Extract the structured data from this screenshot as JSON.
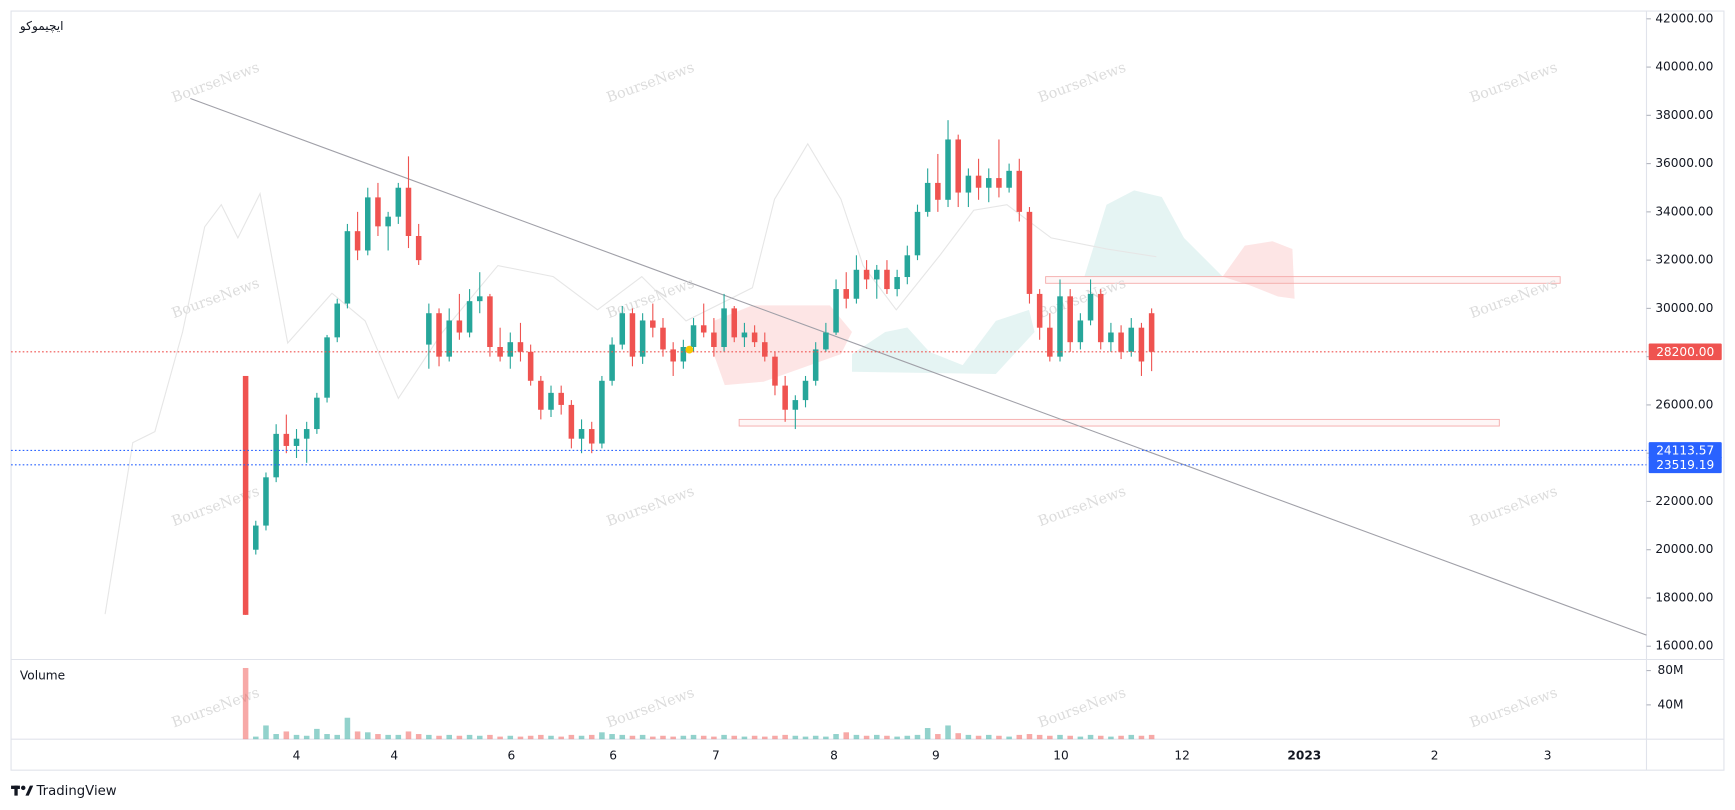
{
  "chart_data": {
    "type": "candlestick",
    "title": "ایچیموکو",
    "watermark": "BourseNews",
    "up_color": "#26a69a",
    "down_color": "#ef5350",
    "xlim": [
      -23.04,
      137.61
    ],
    "xticks": [
      {
        "value": 5,
        "label": "4"
      },
      {
        "value": 14.6,
        "label": "4"
      },
      {
        "value": 26.1,
        "label": "6"
      },
      {
        "value": 36.1,
        "label": "6"
      },
      {
        "value": 46.2,
        "label": "7"
      },
      {
        "value": 57.8,
        "label": "8"
      },
      {
        "value": 67.8,
        "label": "9"
      },
      {
        "value": 80.1,
        "label": "10"
      },
      {
        "value": 92,
        "label": "12"
      },
      {
        "value": 104,
        "label": "2023"
      },
      {
        "value": 116.8,
        "label": "2"
      },
      {
        "value": 127.9,
        "label": "3"
      }
    ],
    "ylim": [
      15496,
      42321
    ],
    "yticks": [
      {
        "value": 16000,
        "label": "16000.00"
      },
      {
        "value": 18000,
        "label": "18000.00"
      },
      {
        "value": 20000,
        "label": "20000.00"
      },
      {
        "value": 22000,
        "label": "22000.00"
      },
      {
        "value": 24000,
        "label": "24000.00"
      },
      {
        "value": 26000,
        "label": "26000.00"
      },
      {
        "value": 28000,
        "label": "28000.00"
      },
      {
        "value": 30000,
        "label": "30000.00"
      },
      {
        "value": 32000,
        "label": "32000.00"
      },
      {
        "value": 34000,
        "label": "34000.00"
      },
      {
        "value": 36000,
        "label": "36000.00"
      },
      {
        "value": 38000,
        "label": "38000.00"
      },
      {
        "value": 40000,
        "label": "40000.00"
      },
      {
        "value": 42000,
        "label": "42000.00"
      }
    ],
    "price_lines": [
      {
        "value": 28200,
        "label": "28200.00",
        "color": "#ef5350"
      },
      {
        "value": 24113.57,
        "label": "24113.57",
        "color": "#2962ff"
      },
      {
        "value": 23519.19,
        "label": "23519.19",
        "color": "#2962ff"
      }
    ],
    "ohlc": [
      [
        27200,
        27200,
        17300,
        17300
      ],
      [
        20000,
        21200,
        19800,
        21000
      ],
      [
        21000,
        23200,
        20800,
        23000
      ],
      [
        23000,
        25200,
        22800,
        24800
      ],
      [
        24800,
        25600,
        24000,
        24300
      ],
      [
        24300,
        25000,
        23800,
        24600
      ],
      [
        24600,
        25300,
        23600,
        25000
      ],
      [
        25000,
        26500,
        24800,
        26300
      ],
      [
        26300,
        28900,
        26100,
        28800
      ],
      [
        28800,
        30400,
        28600,
        30200
      ],
      [
        30200,
        33500,
        30000,
        33200
      ],
      [
        33200,
        34000,
        32000,
        32400
      ],
      [
        32400,
        35000,
        32200,
        34600
      ],
      [
        34600,
        35200,
        33000,
        33400
      ],
      [
        33400,
        34000,
        32400,
        33800
      ],
      [
        33800,
        35200,
        33500,
        35000
      ],
      [
        35000,
        36300,
        32500,
        33000
      ],
      [
        33000,
        33500,
        31800,
        32000
      ],
      [
        28500,
        30200,
        27500,
        29800
      ],
      [
        29800,
        30000,
        27600,
        28000
      ],
      [
        28000,
        30000,
        27800,
        29500
      ],
      [
        29500,
        30600,
        28700,
        29000
      ],
      [
        29000,
        30800,
        28800,
        30300
      ],
      [
        30300,
        31500,
        29800,
        30500
      ],
      [
        30500,
        30600,
        28000,
        28400
      ],
      [
        28400,
        29200,
        27800,
        28000
      ],
      [
        28000,
        29000,
        27500,
        28600
      ],
      [
        28600,
        29400,
        27800,
        28200
      ],
      [
        28200,
        28500,
        26800,
        27000
      ],
      [
        27000,
        27200,
        25400,
        25800
      ],
      [
        25800,
        26800,
        25500,
        26500
      ],
      [
        26500,
        26800,
        25600,
        26000
      ],
      [
        26000,
        26200,
        24200,
        24600
      ],
      [
        24600,
        25400,
        24000,
        25000
      ],
      [
        25000,
        25300,
        24000,
        24400
      ],
      [
        24400,
        27200,
        24200,
        27000
      ],
      [
        27000,
        28800,
        26800,
        28500
      ],
      [
        28500,
        30100,
        28300,
        29800
      ],
      [
        29800,
        30000,
        27600,
        28000
      ],
      [
        28000,
        29800,
        27700,
        29500
      ],
      [
        29500,
        30200,
        28800,
        29200
      ],
      [
        29200,
        29600,
        28000,
        28300
      ],
      [
        28300,
        28600,
        27200,
        27800
      ],
      [
        27800,
        28700,
        27500,
        28400
      ],
      [
        28400,
        29600,
        28200,
        29300
      ],
      [
        29300,
        30200,
        28800,
        29000
      ],
      [
        29000,
        29600,
        28000,
        28400
      ],
      [
        28400,
        30600,
        28200,
        30000
      ],
      [
        30000,
        30100,
        28600,
        28800
      ],
      [
        28800,
        29400,
        28400,
        29000
      ],
      [
        29000,
        29300,
        28400,
        28600
      ],
      [
        28600,
        29000,
        27800,
        28000
      ],
      [
        28000,
        28200,
        26400,
        26800
      ],
      [
        26800,
        27200,
        25300,
        25800
      ],
      [
        25800,
        26400,
        25000,
        26200
      ],
      [
        26200,
        27200,
        25900,
        27000
      ],
      [
        27000,
        28600,
        26800,
        28300
      ],
      [
        28300,
        29400,
        28200,
        29000
      ],
      [
        29000,
        31200,
        28900,
        30800
      ],
      [
        30800,
        31500,
        30000,
        30400
      ],
      [
        30400,
        32200,
        30200,
        31600
      ],
      [
        31600,
        32000,
        30800,
        31200
      ],
      [
        31200,
        31800,
        30400,
        31600
      ],
      [
        31600,
        32000,
        30600,
        30800
      ],
      [
        30800,
        31600,
        30500,
        31300
      ],
      [
        31300,
        32600,
        31000,
        32200
      ],
      [
        32200,
        34300,
        32000,
        34000
      ],
      [
        34000,
        35800,
        33800,
        35200
      ],
      [
        35200,
        36400,
        34000,
        34500
      ],
      [
        34500,
        37800,
        34200,
        37000
      ],
      [
        37000,
        37200,
        34200,
        34800
      ],
      [
        34800,
        35800,
        34200,
        35500
      ],
      [
        35500,
        36200,
        34500,
        35000
      ],
      [
        35000,
        35800,
        34400,
        35400
      ],
      [
        35400,
        37000,
        34600,
        35000
      ],
      [
        35000,
        36000,
        34800,
        35700
      ],
      [
        35700,
        36200,
        33600,
        34000
      ],
      [
        34000,
        34200,
        30200,
        30600
      ],
      [
        30600,
        30800,
        28700,
        29200
      ],
      [
        29200,
        29800,
        27800,
        28000
      ],
      [
        28000,
        31200,
        27800,
        30500
      ],
      [
        30500,
        30800,
        28200,
        28600
      ],
      [
        28600,
        29800,
        28300,
        29500
      ],
      [
        29500,
        31200,
        29300,
        30600
      ],
      [
        30600,
        30800,
        28300,
        28600
      ],
      [
        28600,
        29400,
        28200,
        29000
      ],
      [
        29000,
        29300,
        27900,
        28200
      ],
      [
        28200,
        29600,
        28000,
        29200
      ],
      [
        29200,
        29400,
        27200,
        27800
      ],
      [
        29800,
        30000,
        27400,
        28200
      ]
    ],
    "volume": {
      "label": "Volume",
      "ylim": [
        0,
        91600000
      ],
      "yticks": [
        {
          "value": 40000000,
          "label": "40M"
        },
        {
          "value": 80000000,
          "label": "80M"
        }
      ],
      "values": [
        83000000,
        3000000,
        16000000,
        6000000,
        9000000,
        5000000,
        4000000,
        12000000,
        6000000,
        5000000,
        25000000,
        9000000,
        8000000,
        6000000,
        5000000,
        5000000,
        9000000,
        6000000,
        5000000,
        4000000,
        5000000,
        4000000,
        5000000,
        4000000,
        5000000,
        3000000,
        4000000,
        3000000,
        4000000,
        5000000,
        4000000,
        3000000,
        5000000,
        4000000,
        5000000,
        8000000,
        6000000,
        5000000,
        4000000,
        5000000,
        3000000,
        4000000,
        3000000,
        4000000,
        5000000,
        4000000,
        3000000,
        5000000,
        4000000,
        3000000,
        4000000,
        3000000,
        4000000,
        5000000,
        4000000,
        3000000,
        4000000,
        3000000,
        6000000,
        8000000,
        5000000,
        4000000,
        5000000,
        4000000,
        3000000,
        4000000,
        5000000,
        13000000,
        6000000,
        16000000,
        7000000,
        5000000,
        4000000,
        5000000,
        4000000,
        3000000,
        5000000,
        6000000,
        5000000,
        4000000,
        5000000,
        4000000,
        3000000,
        5000000,
        4000000,
        3000000,
        4000000,
        5000000,
        4000000,
        5000000
      ]
    }
  },
  "brand": "TradingView"
}
